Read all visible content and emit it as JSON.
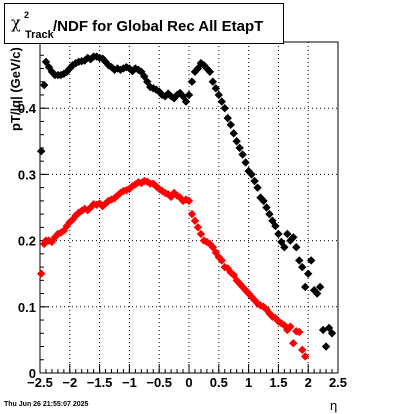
{
  "title": {
    "symbol": "χ",
    "superscript": "2",
    "subscript": "Track",
    "text": "/NDF for Global Rec All EtapT"
  },
  "timestamp": "Thu Jun 26 21:55:07 2025",
  "chart_data": {
    "type": "scatter",
    "title": "χ2Track/NDF for Global Rec All EtapT",
    "xlabel": "η",
    "ylabel": "pT/|q| (GeV/c)",
    "xlim": [
      -2.5,
      2.5
    ],
    "ylim": [
      0,
      0.5
    ],
    "xticks": [
      -2.5,
      -2,
      -1.5,
      -1,
      -0.5,
      0,
      0.5,
      1,
      1.5,
      2,
      2.5
    ],
    "xtick_labels": [
      "−2.5",
      "−2",
      "−1.5",
      "−1",
      "−0.5",
      "0",
      "0.5",
      "1",
      "1.5",
      "2",
      "2.5"
    ],
    "yticks": [
      0,
      0.1,
      0.2,
      0.3,
      0.4
    ],
    "ytick_labels": [
      "0",
      "0.1",
      "0.2",
      "0.3",
      "0.4"
    ],
    "grid": true,
    "series": [
      {
        "color": "#000000",
        "points": [
          [
            -2.48,
            0.335
          ],
          [
            -2.43,
            0.435
          ],
          [
            -2.4,
            0.47
          ],
          [
            -2.35,
            0.462
          ],
          [
            -2.3,
            0.455
          ],
          [
            -2.25,
            0.45
          ],
          [
            -2.2,
            0.45
          ],
          [
            -2.15,
            0.45
          ],
          [
            -2.1,
            0.452
          ],
          [
            -2.05,
            0.455
          ],
          [
            -2.0,
            0.46
          ],
          [
            -1.95,
            0.465
          ],
          [
            -1.9,
            0.468
          ],
          [
            -1.85,
            0.47
          ],
          [
            -1.8,
            0.471
          ],
          [
            -1.75,
            0.472
          ],
          [
            -1.7,
            0.476
          ],
          [
            -1.65,
            0.474
          ],
          [
            -1.6,
            0.478
          ],
          [
            -1.55,
            0.478
          ],
          [
            -1.5,
            0.476
          ],
          [
            -1.45,
            0.475
          ],
          [
            -1.4,
            0.47
          ],
          [
            -1.35,
            0.465
          ],
          [
            -1.3,
            0.462
          ],
          [
            -1.25,
            0.458
          ],
          [
            -1.2,
            0.46
          ],
          [
            -1.15,
            0.458
          ],
          [
            -1.1,
            0.46
          ],
          [
            -1.05,
            0.462
          ],
          [
            -1.0,
            0.46
          ],
          [
            -0.95,
            0.456
          ],
          [
            -0.9,
            0.46
          ],
          [
            -0.85,
            0.458
          ],
          [
            -0.8,
            0.455
          ],
          [
            -0.75,
            0.448
          ],
          [
            -0.7,
            0.44
          ],
          [
            -0.65,
            0.432
          ],
          [
            -0.6,
            0.43
          ],
          [
            -0.55,
            0.428
          ],
          [
            -0.5,
            0.425
          ],
          [
            -0.45,
            0.42
          ],
          [
            -0.4,
            0.418
          ],
          [
            -0.35,
            0.422
          ],
          [
            -0.3,
            0.418
          ],
          [
            -0.25,
            0.415
          ],
          [
            -0.2,
            0.42
          ],
          [
            -0.15,
            0.423
          ],
          [
            -0.1,
            0.418
          ],
          [
            -0.05,
            0.41
          ],
          [
            0.0,
            0.42
          ],
          [
            0.05,
            0.44
          ],
          [
            0.1,
            0.455
          ],
          [
            0.15,
            0.46
          ],
          [
            0.2,
            0.468
          ],
          [
            0.25,
            0.465
          ],
          [
            0.3,
            0.46
          ],
          [
            0.35,
            0.455
          ],
          [
            0.4,
            0.44
          ],
          [
            0.45,
            0.43
          ],
          [
            0.5,
            0.42
          ],
          [
            0.55,
            0.41
          ],
          [
            0.6,
            0.4
          ],
          [
            0.65,
            0.385
          ],
          [
            0.7,
            0.375
          ],
          [
            0.75,
            0.362
          ],
          [
            0.8,
            0.35
          ],
          [
            0.85,
            0.34
          ],
          [
            0.9,
            0.33
          ],
          [
            0.95,
            0.318
          ],
          [
            1.0,
            0.305
          ],
          [
            1.05,
            0.3
          ],
          [
            1.1,
            0.29
          ],
          [
            1.15,
            0.28
          ],
          [
            1.2,
            0.265
          ],
          [
            1.25,
            0.26
          ],
          [
            1.3,
            0.25
          ],
          [
            1.35,
            0.24
          ],
          [
            1.4,
            0.23
          ],
          [
            1.45,
            0.222
          ],
          [
            1.5,
            0.21
          ],
          [
            1.55,
            0.198
          ],
          [
            1.6,
            0.19
          ],
          [
            1.65,
            0.21
          ],
          [
            1.7,
            0.2
          ],
          [
            1.75,
            0.205
          ],
          [
            1.8,
            0.19
          ],
          [
            1.85,
            0.17
          ],
          [
            1.9,
            0.16
          ],
          [
            1.95,
            0.13
          ],
          [
            2.0,
            0.15
          ],
          [
            2.05,
            0.17
          ],
          [
            2.1,
            0.125
          ],
          [
            2.15,
            0.12
          ],
          [
            2.2,
            0.13
          ],
          [
            2.25,
            0.065
          ],
          [
            2.3,
            0.04
          ],
          [
            2.35,
            0.068
          ],
          [
            2.4,
            0.06
          ]
        ]
      },
      {
        "color": "#ff0000",
        "points": [
          [
            -2.48,
            0.15
          ],
          [
            -2.43,
            0.195
          ],
          [
            -2.4,
            0.2
          ],
          [
            -2.35,
            0.2
          ],
          [
            -2.3,
            0.198
          ],
          [
            -2.25,
            0.205
          ],
          [
            -2.2,
            0.21
          ],
          [
            -2.15,
            0.212
          ],
          [
            -2.1,
            0.215
          ],
          [
            -2.05,
            0.222
          ],
          [
            -2.0,
            0.228
          ],
          [
            -1.95,
            0.232
          ],
          [
            -1.9,
            0.238
          ],
          [
            -1.85,
            0.242
          ],
          [
            -1.8,
            0.245
          ],
          [
            -1.75,
            0.248
          ],
          [
            -1.7,
            0.246
          ],
          [
            -1.65,
            0.25
          ],
          [
            -1.6,
            0.255
          ],
          [
            -1.55,
            0.254
          ],
          [
            -1.5,
            0.256
          ],
          [
            -1.45,
            0.252
          ],
          [
            -1.4,
            0.256
          ],
          [
            -1.35,
            0.26
          ],
          [
            -1.3,
            0.262
          ],
          [
            -1.25,
            0.264
          ],
          [
            -1.2,
            0.268
          ],
          [
            -1.15,
            0.272
          ],
          [
            -1.1,
            0.275
          ],
          [
            -1.05,
            0.276
          ],
          [
            -1.0,
            0.278
          ],
          [
            -0.95,
            0.282
          ],
          [
            -0.9,
            0.285
          ],
          [
            -0.85,
            0.288
          ],
          [
            -0.8,
            0.287
          ],
          [
            -0.75,
            0.29
          ],
          [
            -0.7,
            0.289
          ],
          [
            -0.65,
            0.286
          ],
          [
            -0.6,
            0.286
          ],
          [
            -0.55,
            0.282
          ],
          [
            -0.5,
            0.278
          ],
          [
            -0.45,
            0.275
          ],
          [
            -0.4,
            0.272
          ],
          [
            -0.35,
            0.27
          ],
          [
            -0.3,
            0.266
          ],
          [
            -0.25,
            0.272
          ],
          [
            -0.2,
            0.268
          ],
          [
            -0.15,
            0.265
          ],
          [
            -0.1,
            0.26
          ],
          [
            -0.05,
            0.262
          ],
          [
            0.0,
            0.26
          ],
          [
            0.05,
            0.24
          ],
          [
            0.1,
            0.23
          ],
          [
            0.15,
            0.22
          ],
          [
            0.2,
            0.21
          ],
          [
            0.25,
            0.2
          ],
          [
            0.3,
            0.198
          ],
          [
            0.35,
            0.195
          ],
          [
            0.4,
            0.19
          ],
          [
            0.45,
            0.182
          ],
          [
            0.5,
            0.175
          ],
          [
            0.55,
            0.17
          ],
          [
            0.6,
            0.16
          ],
          [
            0.65,
            0.158
          ],
          [
            0.7,
            0.152
          ],
          [
            0.75,
            0.148
          ],
          [
            0.8,
            0.14
          ],
          [
            0.85,
            0.135
          ],
          [
            0.9,
            0.13
          ],
          [
            0.95,
            0.125
          ],
          [
            1.0,
            0.12
          ],
          [
            1.05,
            0.115
          ],
          [
            1.1,
            0.11
          ],
          [
            1.15,
            0.105
          ],
          [
            1.2,
            0.102
          ],
          [
            1.25,
            0.1
          ],
          [
            1.3,
            0.096
          ],
          [
            1.35,
            0.09
          ],
          [
            1.4,
            0.085
          ],
          [
            1.45,
            0.083
          ],
          [
            1.5,
            0.078
          ],
          [
            1.55,
            0.075
          ],
          [
            1.6,
            0.072
          ],
          [
            1.65,
            0.065
          ],
          [
            1.7,
            0.07
          ],
          [
            1.75,
            0.045
          ],
          [
            1.8,
            0.063
          ],
          [
            1.85,
            0.062
          ],
          [
            1.9,
            0.035
          ],
          [
            1.95,
            0.025
          ]
        ]
      }
    ]
  }
}
